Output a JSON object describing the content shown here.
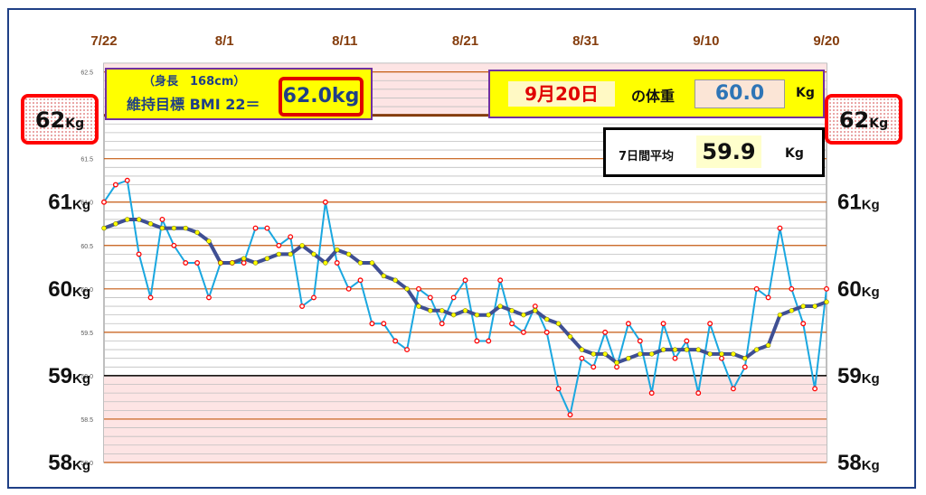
{
  "header": {
    "date_labels": [
      "7/22",
      "8/1",
      "8/11",
      "8/21",
      "8/31",
      "9/10",
      "9/20"
    ]
  },
  "goal_box": {
    "height_text": "（身長　168cm）",
    "bmi_text": "維持目標 BMI 22＝",
    "target_weight": "62.0kg"
  },
  "today_box": {
    "date": "9月20日",
    "label": "の体重",
    "weight": "60.0",
    "unit": "Kg"
  },
  "average_box": {
    "label": "7日間平均",
    "value": "59.9",
    "unit": "Kg"
  },
  "target_tags": {
    "value": "62",
    "unit": "Kg"
  },
  "colors": {
    "daily_line": "#1aa7e0",
    "daily_marker": "#ff0000",
    "average_line": "#3f4f93",
    "average_marker": "#ffff00",
    "major_grid": "#c55a11",
    "minor_grid": "#bfbfbf",
    "target_line": "#843c0c",
    "pink_zone": "#fde4e4",
    "highlight_box": "#ffff00",
    "border": "#1f3f86"
  },
  "chart_data": {
    "type": "line",
    "x_start": "7/22",
    "x_end": "9/20",
    "x_tick_labels": [
      "7/22",
      "8/1",
      "8/11",
      "8/21",
      "8/31",
      "9/10",
      "9/20"
    ],
    "ylim": [
      58.0,
      62.6
    ],
    "y_small_tick_labels": [
      "62.5",
      "61.5",
      "61.0",
      "60.5",
      "60.0",
      "59.5",
      "59.0",
      "58.5",
      "58.0"
    ],
    "y_big_labels": [
      "62",
      "61",
      "60",
      "59",
      "58"
    ],
    "y_big_unit": "Kg",
    "target_weight": 62.0,
    "pink_zones": [
      [
        62.0,
        62.6
      ],
      [
        58.0,
        59.0
      ]
    ],
    "grid": true,
    "series": [
      {
        "values": [
          61.0,
          61.2,
          61.25,
          60.4,
          59.9,
          60.8,
          60.5,
          60.3,
          60.3,
          59.9,
          60.3,
          60.3,
          60.3,
          60.7,
          60.7,
          60.5,
          60.6,
          59.8,
          59.9,
          61.0,
          60.3,
          60.0,
          60.1,
          59.6,
          59.6,
          59.4,
          59.3,
          60.0,
          59.9,
          59.6,
          59.9,
          60.1,
          59.4,
          59.4,
          60.1,
          59.6,
          59.5,
          59.8,
          59.5,
          58.85,
          58.55,
          59.2,
          59.1,
          59.5,
          59.1,
          59.6,
          59.4,
          58.8,
          59.6,
          59.2,
          59.4,
          58.8,
          59.6,
          59.2,
          58.85,
          59.1,
          60.0,
          59.9,
          60.7,
          60.0,
          59.6,
          58.85,
          60.0
        ]
      },
      {
        "values": [
          60.7,
          60.75,
          60.8,
          60.8,
          60.75,
          60.7,
          60.7,
          60.7,
          60.65,
          60.55,
          60.3,
          60.3,
          60.35,
          60.3,
          60.35,
          60.4,
          60.4,
          60.5,
          60.4,
          60.3,
          60.45,
          60.4,
          60.3,
          60.3,
          60.15,
          60.1,
          60.0,
          59.8,
          59.75,
          59.75,
          59.7,
          59.75,
          59.7,
          59.7,
          59.8,
          59.75,
          59.7,
          59.75,
          59.65,
          59.6,
          59.45,
          59.3,
          59.25,
          59.25,
          59.15,
          59.2,
          59.25,
          59.25,
          59.3,
          59.3,
          59.3,
          59.3,
          59.25,
          59.25,
          59.25,
          59.2,
          59.3,
          59.35,
          59.7,
          59.75,
          59.8,
          59.8,
          59.85
        ]
      }
    ]
  }
}
